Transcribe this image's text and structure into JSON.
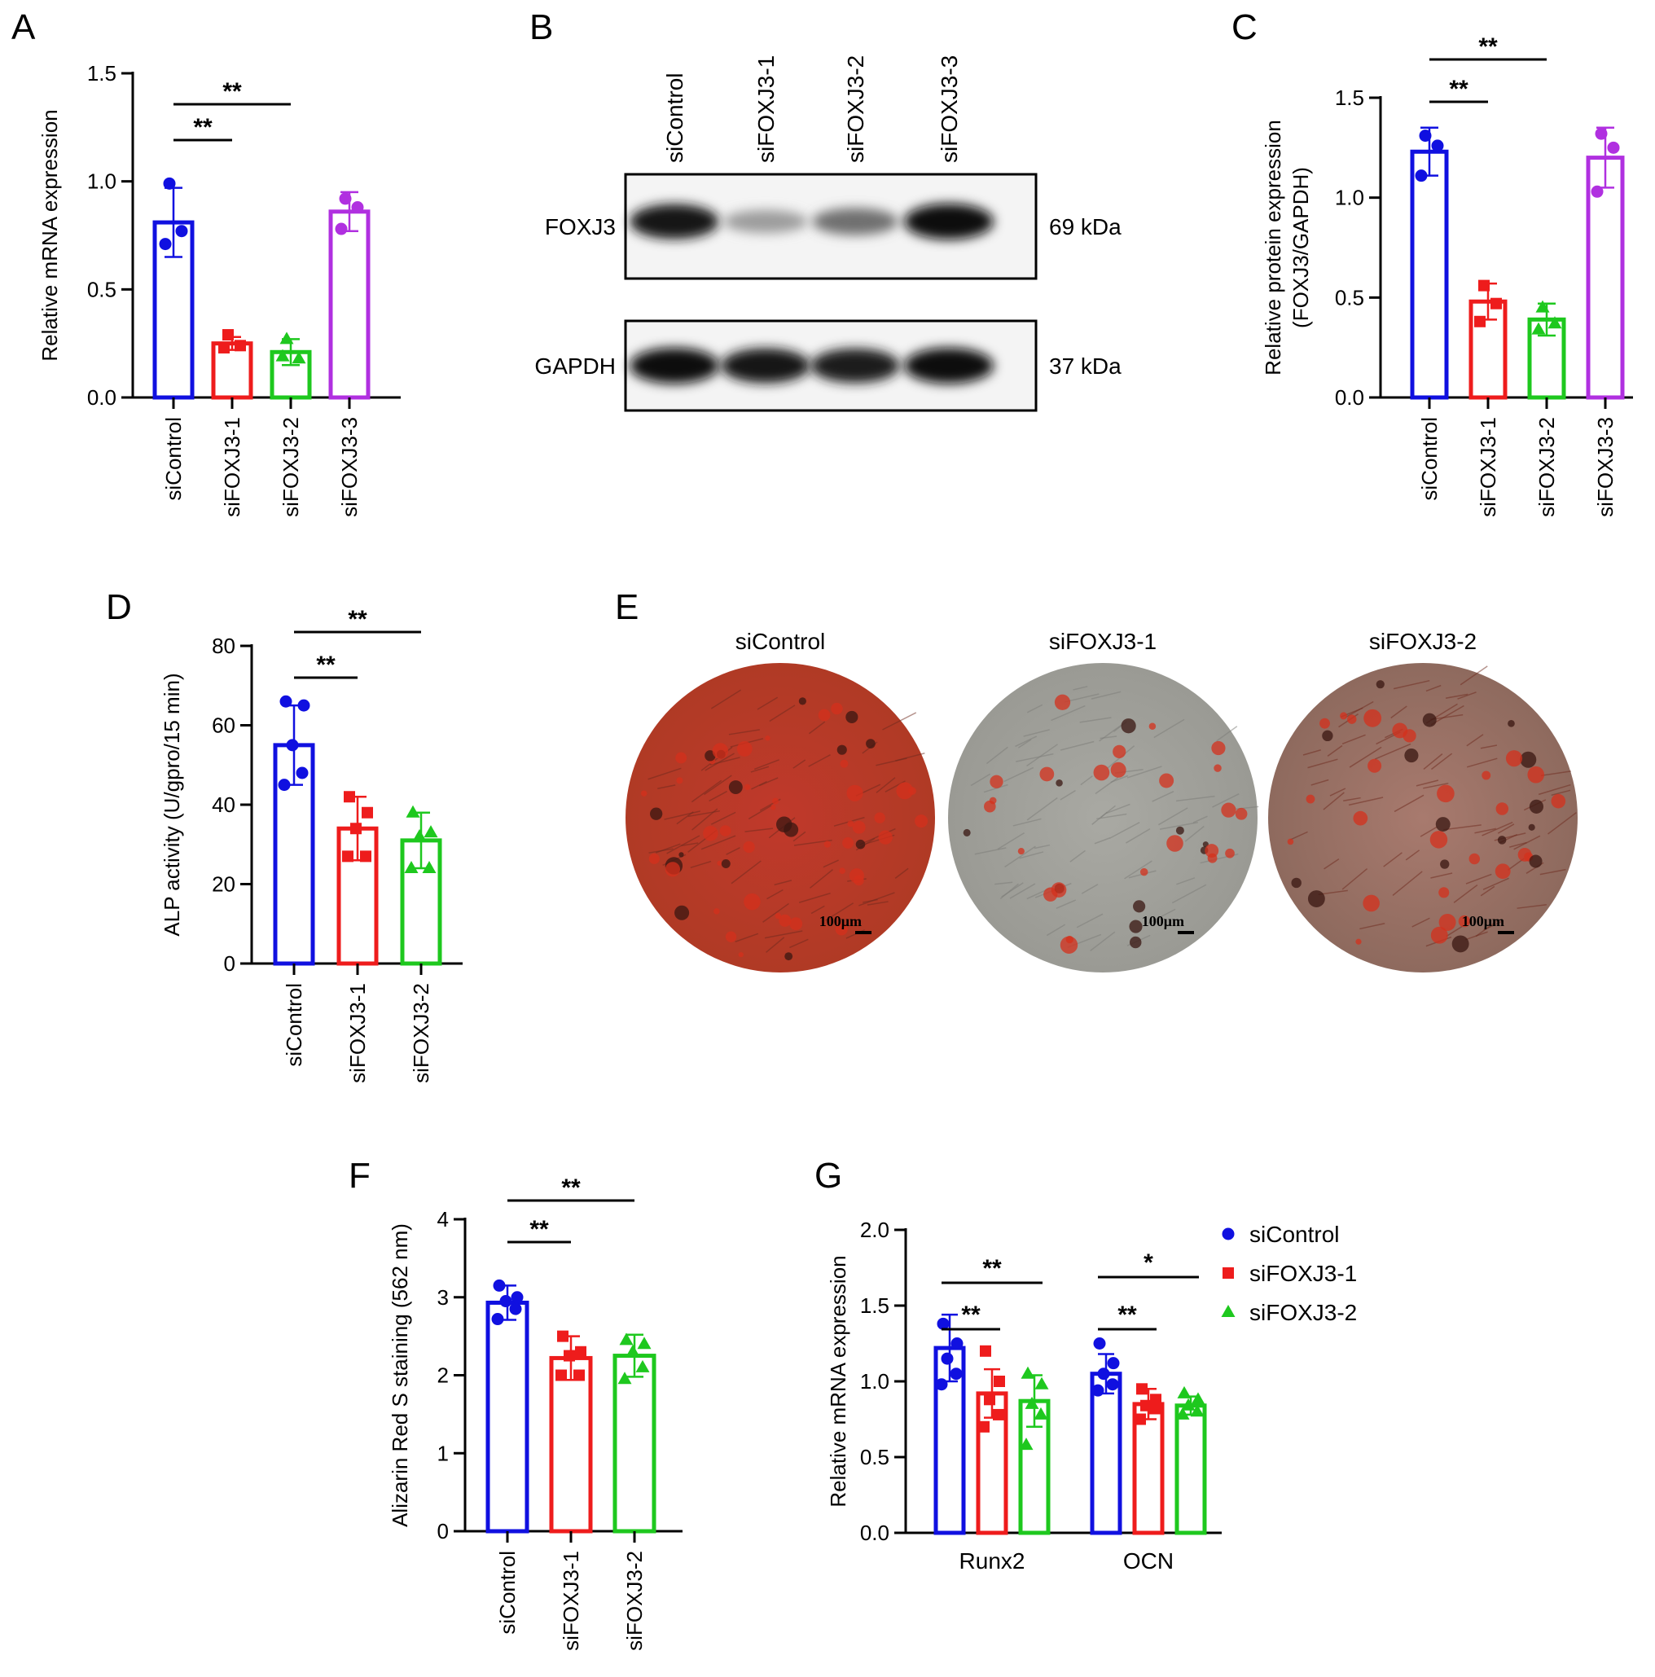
{
  "colors": {
    "siControl": "#1010e0",
    "siFOXJ3-1": "#ee1c1c",
    "siFOXJ3-2": "#1ec81e",
    "siFOXJ3-3": "#b030e0",
    "text": "#000000"
  },
  "panel_letters": [
    "A",
    "B",
    "C",
    "D",
    "E",
    "F",
    "G"
  ],
  "blot": {
    "lanes": [
      "siControl",
      "siFOXJ3-1",
      "siFOXJ3-2",
      "siFOXJ3-3"
    ],
    "rows": [
      {
        "protein": "FOXJ3",
        "size": "69 kDa",
        "band_intensity": [
          0.95,
          0.35,
          0.55,
          1.0
        ]
      },
      {
        "protein": "GAPDH",
        "size": "37 kDa",
        "band_intensity": [
          1.0,
          0.95,
          0.93,
          1.0
        ]
      }
    ]
  },
  "micrographs": {
    "labels": [
      "siControl",
      "siFOXJ3-1",
      "siFOXJ3-2"
    ],
    "scale_bar": "100μm",
    "red_stain_level": [
      0.9,
      0.35,
      0.55
    ]
  },
  "chart_data": [
    {
      "panel": "A",
      "type": "bar",
      "ylabel": "Relative mRNA expression",
      "ylim": [
        0,
        1.5
      ],
      "yticks": [
        "0.0",
        "0.5",
        "1.0",
        "1.5"
      ],
      "categories": [
        "siControl",
        "siFOXJ3-1",
        "siFOXJ3-2",
        "siFOXJ3-3"
      ],
      "values": [
        0.81,
        0.25,
        0.21,
        0.86
      ],
      "errors": [
        0.16,
        0.03,
        0.06,
        0.09
      ],
      "points": [
        [
          0.99,
          0.77,
          0.71
        ],
        [
          0.29,
          0.24,
          0.23
        ],
        [
          0.27,
          0.18,
          0.19
        ],
        [
          0.92,
          0.88,
          0.78
        ]
      ],
      "markers": [
        "circle",
        "square",
        "triangle",
        "circle"
      ],
      "significance": [
        {
          "from": 0,
          "to": 1,
          "label": "**"
        },
        {
          "from": 0,
          "to": 2,
          "label": "**"
        }
      ]
    },
    {
      "panel": "C",
      "type": "bar",
      "ylabel": "Relative protein expression",
      "ylabel2": "(FOXJ3/GAPDH)",
      "ylim": [
        0,
        1.5
      ],
      "yticks": [
        "0.0",
        "0.5",
        "1.0",
        "1.5"
      ],
      "categories": [
        "siControl",
        "siFOXJ3-1",
        "siFOXJ3-2",
        "siFOXJ3-3"
      ],
      "values": [
        1.23,
        0.48,
        0.39,
        1.2
      ],
      "errors": [
        0.12,
        0.09,
        0.08,
        0.15
      ],
      "points": [
        [
          1.31,
          1.26,
          1.11
        ],
        [
          0.56,
          0.47,
          0.38
        ],
        [
          0.45,
          0.37,
          0.34
        ],
        [
          1.32,
          1.25,
          1.03
        ]
      ],
      "markers": [
        "circle",
        "square",
        "triangle",
        "circle"
      ],
      "significance": [
        {
          "from": 0,
          "to": 1,
          "label": "**"
        },
        {
          "from": 0,
          "to": 2,
          "label": "**"
        }
      ]
    },
    {
      "panel": "D",
      "type": "bar",
      "ylabel": "ALP activity (U/gpro/15 min)",
      "ylim": [
        0,
        80
      ],
      "yticks": [
        "0",
        "20",
        "40",
        "60",
        "80"
      ],
      "categories": [
        "siControl",
        "siFOXJ3-1",
        "siFOXJ3-2"
      ],
      "values": [
        55,
        34,
        31
      ],
      "errors": [
        10,
        8,
        7
      ],
      "points": [
        [
          66,
          65,
          55,
          48,
          45
        ],
        [
          42,
          38,
          34,
          27,
          27
        ],
        [
          38,
          33,
          32,
          24,
          24
        ]
      ],
      "markers": [
        "circle",
        "square",
        "triangle"
      ],
      "significance": [
        {
          "from": 0,
          "to": 1,
          "label": "**"
        },
        {
          "from": 0,
          "to": 2,
          "label": "**"
        }
      ]
    },
    {
      "panel": "F",
      "type": "bar",
      "ylabel": "Alizarin Red S staining (562 nm)",
      "ylim": [
        0,
        4
      ],
      "yticks": [
        "0",
        "1",
        "2",
        "3",
        "4"
      ],
      "categories": [
        "siControl",
        "siFOXJ3-1",
        "siFOXJ3-2"
      ],
      "values": [
        2.93,
        2.22,
        2.25
      ],
      "errors": [
        0.22,
        0.28,
        0.27
      ],
      "points": [
        [
          3.15,
          3.0,
          2.95,
          2.85,
          2.72
        ],
        [
          2.5,
          2.3,
          2.25,
          2.0,
          2.0
        ],
        [
          2.45,
          2.4,
          2.3,
          2.1,
          1.95
        ]
      ],
      "markers": [
        "circle",
        "square",
        "triangle"
      ],
      "significance": [
        {
          "from": 0,
          "to": 1,
          "label": "**"
        },
        {
          "from": 0,
          "to": 2,
          "label": "**"
        }
      ]
    },
    {
      "panel": "G",
      "type": "bar",
      "ylabel": "Relative mRNA expression",
      "ylim": [
        0,
        2.0
      ],
      "yticks": [
        "0.0",
        "0.5",
        "1.0",
        "1.5",
        "2.0"
      ],
      "categories": [
        "Runx2",
        "OCN"
      ],
      "legend": "top-right",
      "series": [
        {
          "name": "siControl",
          "values": [
            1.22,
            1.05
          ],
          "errors": [
            0.22,
            0.13
          ],
          "points": [
            [
              1.38,
              1.25,
              1.15,
              1.05,
              0.98
            ],
            [
              1.25,
              1.12,
              1.05,
              0.98,
              0.94
            ]
          ],
          "marker": "circle"
        },
        {
          "name": "siFOXJ3-1",
          "values": [
            0.92,
            0.85
          ],
          "errors": [
            0.16,
            0.1
          ],
          "points": [
            [
              1.2,
              1.0,
              0.88,
              0.78,
              0.7
            ],
            [
              0.95,
              0.88,
              0.84,
              0.82,
              0.75
            ]
          ],
          "marker": "square"
        },
        {
          "name": "siFOXJ3-2",
          "values": [
            0.87,
            0.84
          ],
          "errors": [
            0.17,
            0.06
          ],
          "points": [
            [
              1.05,
              0.98,
              0.85,
              0.78,
              0.58
            ],
            [
              0.92,
              0.88,
              0.84,
              0.8,
              0.78
            ]
          ],
          "marker": "triangle"
        }
      ],
      "significance": [
        {
          "group": 0,
          "from": 0,
          "to": 1,
          "label": "**"
        },
        {
          "group": 0,
          "from": 0,
          "to": 2,
          "label": "**"
        },
        {
          "group": 1,
          "from": 0,
          "to": 1,
          "label": "**"
        },
        {
          "group": 1,
          "from": 0,
          "to": 2,
          "label": "*"
        }
      ]
    }
  ]
}
